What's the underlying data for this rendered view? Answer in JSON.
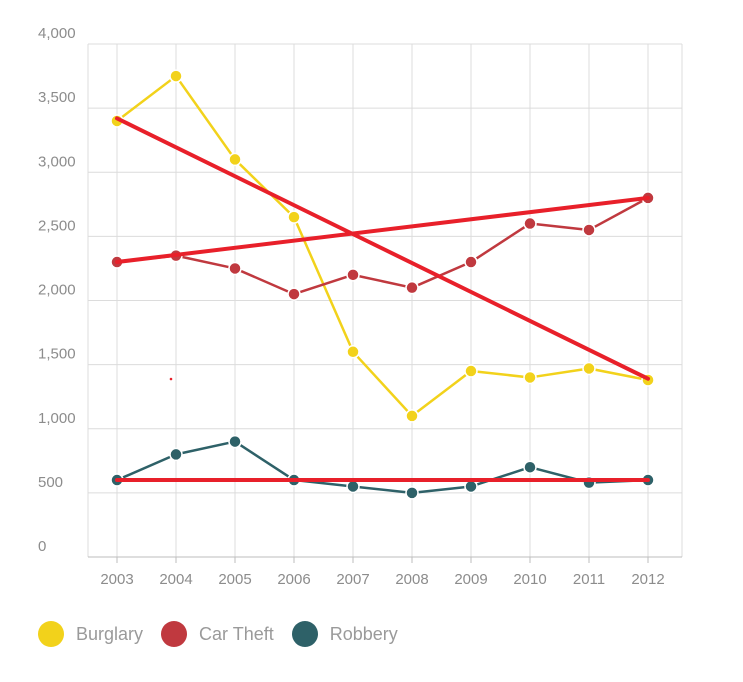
{
  "chart_data": {
    "type": "line",
    "categories": [
      "2003",
      "2004",
      "2005",
      "2006",
      "2007",
      "2008",
      "2009",
      "2010",
      "2011",
      "2012"
    ],
    "y_ticks": [
      "0",
      "500",
      "1,000",
      "1,500",
      "2,000",
      "2,500",
      "3,000",
      "3,500",
      "4,000"
    ],
    "ylim": [
      0,
      4000
    ],
    "grid": true,
    "legend_position": "bottom-left",
    "series": [
      {
        "name": "Burglary",
        "color": "#f2d21b",
        "values": [
          3400,
          3750,
          3100,
          2650,
          1600,
          1100,
          1450,
          1400,
          1470,
          1380
        ]
      },
      {
        "name": "Car Theft",
        "color": "#c0393f",
        "values": [
          2300,
          2350,
          2250,
          2050,
          2200,
          2100,
          2300,
          2600,
          2550,
          2800
        ]
      },
      {
        "name": "Robbery",
        "color": "#2e6168",
        "values": [
          600,
          800,
          900,
          600,
          550,
          500,
          550,
          700,
          580,
          600
        ]
      }
    ],
    "annotations": {
      "color": "#e8202a",
      "trend_lines": [
        {
          "from": [
            "2003",
            3420
          ],
          "to": [
            "2012",
            1390
          ]
        },
        {
          "from": [
            "2003",
            2300
          ],
          "to": [
            "2012",
            2800
          ]
        },
        {
          "from": [
            "2003",
            600
          ],
          "to": [
            "2012",
            600
          ]
        }
      ]
    }
  }
}
